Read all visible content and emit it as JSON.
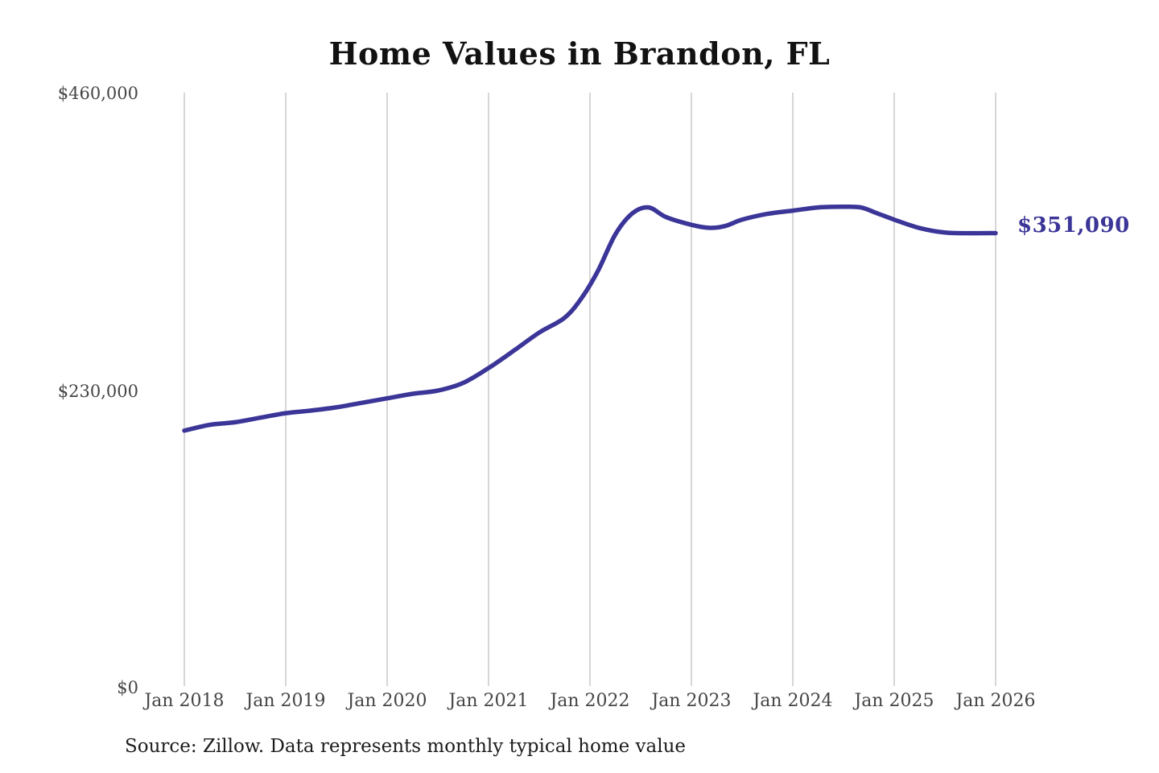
{
  "title": "Home Values in Brandon, FL",
  "source_note": "Source: Zillow. Data represents monthly typical home value",
  "colors": {
    "line": "#3b3598",
    "grid": "#c9c9c9",
    "axis_text": "#454545",
    "title_text": "#121212",
    "source_text": "#1c1c1c",
    "background": "#ffffff"
  },
  "chart_data": {
    "type": "line",
    "title": "Home Values in Brandon, FL",
    "xlabel": "",
    "ylabel": "",
    "x_ticks": [
      "Jan 2018",
      "Jan 2019",
      "Jan 2020",
      "Jan 2021",
      "Jan 2022",
      "Jan 2023",
      "Jan 2024",
      "Jan 2025",
      "Jan 2026"
    ],
    "y_ticks": [
      "$460,000",
      "$230,000",
      "$0"
    ],
    "y_tick_values": [
      460000,
      230000,
      0
    ],
    "ylim": [
      0,
      460000
    ],
    "xlim_decimal_years": [
      2018.0,
      2026.0
    ],
    "grid": "vertical-gridlines-only",
    "legend": "none",
    "series": [
      {
        "name": "Monthly typical home value",
        "x_unit": "decimal-year",
        "points": [
          [
            2018.0,
            198000
          ],
          [
            2018.25,
            202500
          ],
          [
            2018.5,
            204500
          ],
          [
            2018.75,
            208000
          ],
          [
            2019.0,
            211500
          ],
          [
            2019.25,
            213500
          ],
          [
            2019.5,
            216000
          ],
          [
            2019.75,
            219500
          ],
          [
            2020.0,
            223000
          ],
          [
            2020.25,
            226500
          ],
          [
            2020.5,
            229000
          ],
          [
            2020.75,
            235000
          ],
          [
            2021.0,
            246500
          ],
          [
            2021.25,
            260000
          ],
          [
            2021.5,
            274000
          ],
          [
            2021.75,
            285500
          ],
          [
            2021.92,
            301000
          ],
          [
            2022.08,
            322000
          ],
          [
            2022.25,
            350000
          ],
          [
            2022.42,
            366500
          ],
          [
            2022.58,
            371000
          ],
          [
            2022.75,
            363500
          ],
          [
            2023.0,
            357500
          ],
          [
            2023.17,
            355200
          ],
          [
            2023.33,
            356500
          ],
          [
            2023.5,
            361500
          ],
          [
            2023.75,
            366000
          ],
          [
            2024.0,
            368500
          ],
          [
            2024.25,
            371000
          ],
          [
            2024.5,
            371500
          ],
          [
            2024.67,
            371000
          ],
          [
            2024.83,
            366500
          ],
          [
            2025.0,
            361500
          ],
          [
            2025.25,
            355000
          ],
          [
            2025.5,
            351500
          ],
          [
            2025.75,
            351000
          ],
          [
            2026.0,
            351090
          ]
        ],
        "final_value": 351090,
        "final_value_label": "$351,090"
      }
    ]
  }
}
